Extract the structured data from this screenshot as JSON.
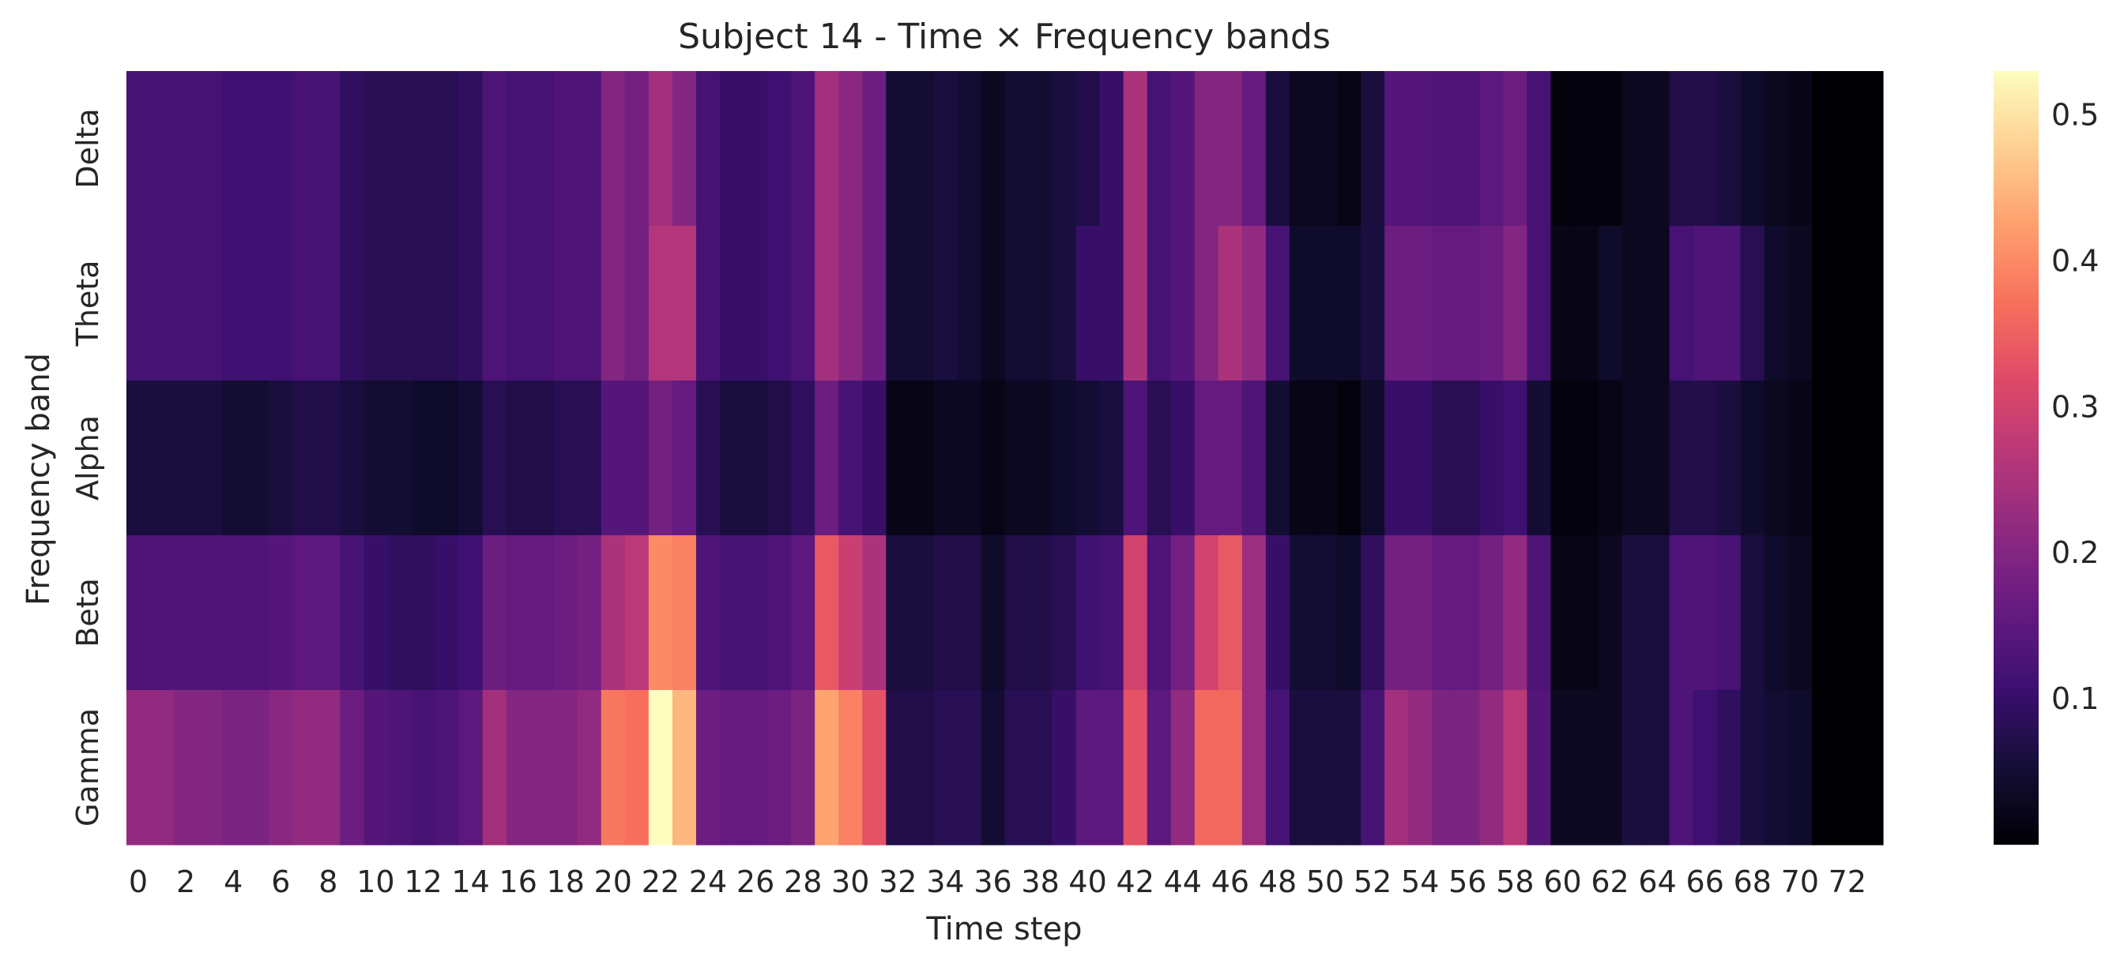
{
  "chart_data": {
    "type": "heatmap",
    "title": "Subject 14 - Time × Frequency bands",
    "xlabel": "Time step",
    "ylabel": "Frequency band",
    "rows": [
      "Delta",
      "Theta",
      "Alpha",
      "Beta",
      "Gamma"
    ],
    "columns": [
      0,
      1,
      2,
      3,
      4,
      5,
      6,
      7,
      8,
      9,
      10,
      11,
      12,
      13,
      14,
      15,
      16,
      17,
      18,
      19,
      20,
      21,
      22,
      23,
      24,
      25,
      26,
      27,
      28,
      29,
      30,
      31,
      32,
      33,
      34,
      35,
      36,
      37,
      38,
      39,
      40,
      41,
      42,
      43,
      44,
      45,
      46,
      47,
      48,
      49,
      50,
      51,
      52,
      53,
      54,
      55,
      56,
      57,
      58,
      59,
      60,
      61,
      62,
      63,
      64,
      65,
      66,
      67,
      68,
      69,
      70,
      71,
      72,
      73
    ],
    "x_tick_labels": [
      "0",
      "2",
      "4",
      "6",
      "8",
      "10",
      "12",
      "14",
      "16",
      "18",
      "20",
      "22",
      "24",
      "26",
      "28",
      "30",
      "32",
      "34",
      "36",
      "38",
      "40",
      "42",
      "44",
      "46",
      "48",
      "50",
      "52",
      "54",
      "56",
      "58",
      "60",
      "62",
      "64",
      "66",
      "68",
      "70",
      "72"
    ],
    "values": [
      [
        0.12,
        0.12,
        0.12,
        0.12,
        0.11,
        0.11,
        0.11,
        0.12,
        0.12,
        0.09,
        0.08,
        0.08,
        0.08,
        0.08,
        0.09,
        0.13,
        0.12,
        0.12,
        0.13,
        0.13,
        0.2,
        0.18,
        0.24,
        0.2,
        0.12,
        0.1,
        0.1,
        0.11,
        0.13,
        0.24,
        0.21,
        0.17,
        0.05,
        0.05,
        0.06,
        0.05,
        0.03,
        0.05,
        0.05,
        0.06,
        0.07,
        0.1,
        0.25,
        0.12,
        0.14,
        0.2,
        0.2,
        0.16,
        0.06,
        0.03,
        0.03,
        0.02,
        0.06,
        0.14,
        0.14,
        0.13,
        0.13,
        0.15,
        0.17,
        0.12,
        0.01,
        0.01,
        0.01,
        0.03,
        0.03,
        0.07,
        0.07,
        0.06,
        0.04,
        0.03,
        0.02,
        0.0,
        0.0,
        0.0
      ],
      [
        0.12,
        0.12,
        0.12,
        0.12,
        0.11,
        0.11,
        0.11,
        0.12,
        0.12,
        0.09,
        0.08,
        0.08,
        0.08,
        0.08,
        0.09,
        0.13,
        0.12,
        0.12,
        0.13,
        0.13,
        0.2,
        0.18,
        0.26,
        0.26,
        0.12,
        0.1,
        0.1,
        0.11,
        0.13,
        0.24,
        0.21,
        0.17,
        0.05,
        0.05,
        0.06,
        0.05,
        0.03,
        0.05,
        0.05,
        0.06,
        0.1,
        0.1,
        0.25,
        0.12,
        0.14,
        0.2,
        0.25,
        0.22,
        0.12,
        0.04,
        0.04,
        0.04,
        0.06,
        0.17,
        0.17,
        0.16,
        0.16,
        0.17,
        0.2,
        0.12,
        0.02,
        0.02,
        0.04,
        0.03,
        0.03,
        0.12,
        0.13,
        0.13,
        0.08,
        0.04,
        0.03,
        0.0,
        0.0,
        0.0
      ],
      [
        0.06,
        0.06,
        0.06,
        0.06,
        0.05,
        0.05,
        0.06,
        0.07,
        0.07,
        0.06,
        0.05,
        0.05,
        0.04,
        0.04,
        0.05,
        0.08,
        0.07,
        0.07,
        0.08,
        0.08,
        0.14,
        0.14,
        0.18,
        0.16,
        0.08,
        0.06,
        0.06,
        0.07,
        0.09,
        0.17,
        0.12,
        0.1,
        0.02,
        0.02,
        0.03,
        0.03,
        0.02,
        0.03,
        0.03,
        0.04,
        0.05,
        0.06,
        0.13,
        0.08,
        0.1,
        0.16,
        0.16,
        0.13,
        0.05,
        0.02,
        0.02,
        0.01,
        0.04,
        0.1,
        0.1,
        0.08,
        0.08,
        0.1,
        0.11,
        0.05,
        0.01,
        0.01,
        0.02,
        0.03,
        0.03,
        0.07,
        0.07,
        0.06,
        0.04,
        0.03,
        0.02,
        0.0,
        0.0,
        0.0
      ],
      [
        0.13,
        0.13,
        0.13,
        0.13,
        0.13,
        0.13,
        0.14,
        0.15,
        0.15,
        0.12,
        0.1,
        0.09,
        0.09,
        0.1,
        0.11,
        0.17,
        0.16,
        0.16,
        0.17,
        0.18,
        0.25,
        0.27,
        0.4,
        0.39,
        0.13,
        0.12,
        0.12,
        0.13,
        0.15,
        0.34,
        0.29,
        0.25,
        0.06,
        0.06,
        0.07,
        0.07,
        0.04,
        0.07,
        0.07,
        0.08,
        0.11,
        0.12,
        0.3,
        0.13,
        0.18,
        0.3,
        0.34,
        0.23,
        0.1,
        0.05,
        0.05,
        0.04,
        0.09,
        0.18,
        0.18,
        0.16,
        0.16,
        0.18,
        0.22,
        0.13,
        0.02,
        0.02,
        0.03,
        0.06,
        0.06,
        0.13,
        0.13,
        0.12,
        0.06,
        0.04,
        0.03,
        0.0,
        0.0,
        0.0
      ],
      [
        0.22,
        0.22,
        0.2,
        0.2,
        0.19,
        0.19,
        0.21,
        0.22,
        0.22,
        0.17,
        0.14,
        0.13,
        0.12,
        0.13,
        0.15,
        0.24,
        0.2,
        0.2,
        0.2,
        0.22,
        0.38,
        0.37,
        0.53,
        0.45,
        0.17,
        0.16,
        0.16,
        0.17,
        0.19,
        0.43,
        0.39,
        0.33,
        0.07,
        0.07,
        0.08,
        0.08,
        0.05,
        0.08,
        0.08,
        0.1,
        0.15,
        0.15,
        0.33,
        0.15,
        0.22,
        0.36,
        0.36,
        0.23,
        0.12,
        0.06,
        0.06,
        0.06,
        0.12,
        0.24,
        0.22,
        0.19,
        0.19,
        0.22,
        0.27,
        0.14,
        0.03,
        0.03,
        0.03,
        0.06,
        0.06,
        0.13,
        0.11,
        0.09,
        0.06,
        0.05,
        0.04,
        0.0,
        0.0,
        0.0
      ]
    ],
    "colormap": "magma",
    "vmin": 0.0,
    "vmax": 0.53,
    "colorbar_ticks": [
      0.1,
      0.2,
      0.3,
      0.4,
      0.5
    ],
    "colorbar_tick_labels": [
      "0.1",
      "0.2",
      "0.3",
      "0.4",
      "0.5"
    ],
    "grid": false
  }
}
